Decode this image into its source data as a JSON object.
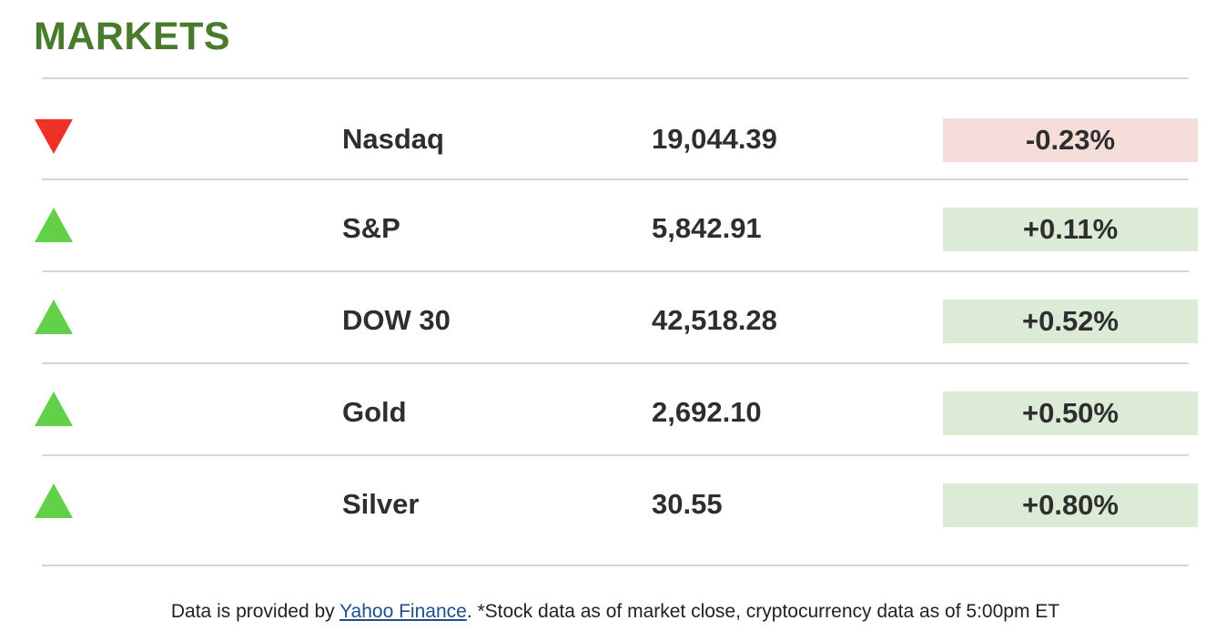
{
  "header": {
    "title": "MARKETS"
  },
  "markets": [
    {
      "name": "Nasdaq",
      "value": "19,044.39",
      "change": "-0.23%",
      "direction": "down"
    },
    {
      "name": "S&P",
      "value": "5,842.91",
      "change": "+0.11%",
      "direction": "up"
    },
    {
      "name": "DOW 30",
      "value": "42,518.28",
      "change": "+0.52%",
      "direction": "up"
    },
    {
      "name": "Gold",
      "value": "2,692.10",
      "change": "+0.50%",
      "direction": "up"
    },
    {
      "name": "Silver",
      "value": "30.55",
      "change": "+0.80%",
      "direction": "up"
    }
  ],
  "footer": {
    "prefix": "Data is provided by ",
    "link_text": "Yahoo Finance",
    "suffix": ". *Stock data as of market close, cryptocurrency data as of 5:00pm ET"
  },
  "colors": {
    "title_green": "#4a7a2c",
    "up_arrow": "#62d048",
    "down_arrow": "#ee3124",
    "positive_bg": "#dcebd6",
    "negative_bg": "#f5ddd9",
    "link": "#1f4e8c"
  },
  "icons": {
    "up": "arrow-up-icon",
    "down": "arrow-down-icon"
  }
}
